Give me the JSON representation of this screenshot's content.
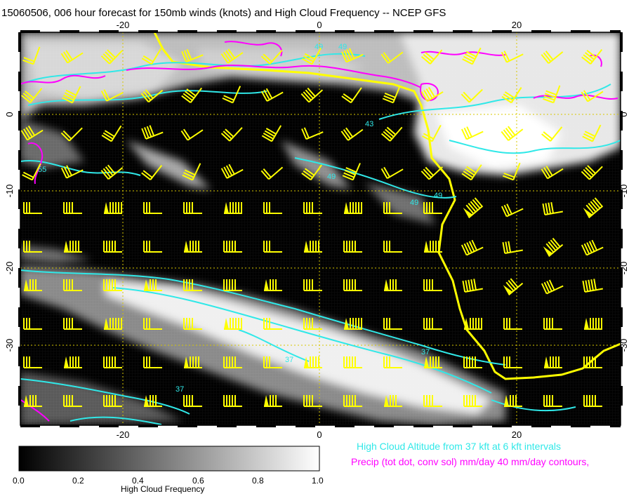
{
  "title": "15060506, 006 hour forecast for 150mb winds (knots) and High Cloud Frequency -- NCEP GFS",
  "map": {
    "lon_ticks": [
      "-20",
      "0",
      "20"
    ],
    "lat_ticks": [
      "0",
      "-10",
      "-20",
      "-30"
    ],
    "contour_labels": [
      "49",
      "49",
      "43",
      "55",
      "49",
      "49",
      "49",
      "37",
      "37",
      "37"
    ]
  },
  "colorbar": {
    "ticks": [
      "0.0",
      "0.2",
      "0.4",
      "0.6",
      "0.8",
      "1.0"
    ],
    "title": "High Cloud Frequency"
  },
  "notes": {
    "cloud_altitude": "High Cloud Altitude from 37 kft at 6 kft intervals",
    "precip": "Precip (tot dot, conv sol) mm/day 40 mm/day contours,"
  },
  "colors": {
    "cloud_contour": "#30e8e8",
    "precip_contour": "#ff00ff",
    "wind_barb": "#ffff00",
    "coast": "#ffff00",
    "grid": "#d8c800"
  }
}
